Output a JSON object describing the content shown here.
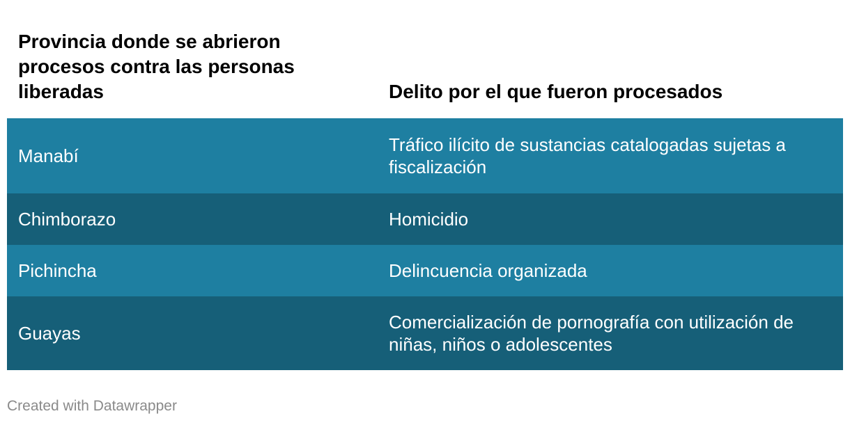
{
  "chart_data": {
    "type": "table",
    "columns": [
      "Provincia donde se abrieron procesos contra las personas liberadas",
      "Delito por el que fueron procesados"
    ],
    "rows": [
      [
        "Manabí",
        "Tráfico ilícito de sustancias catalogadas sujetas a fiscalización"
      ],
      [
        "Chimborazo",
        "Homicidio"
      ],
      [
        "Pichincha",
        "Delincuencia organizada"
      ],
      [
        "Guayas",
        "Comercialización de pornografía con utilización de niñas, niños o adolescentes"
      ]
    ],
    "row_colors": [
      "#1e7fa1",
      "#165f78",
      "#1e7fa1",
      "#165f78"
    ]
  },
  "credit": "Created with Datawrapper"
}
